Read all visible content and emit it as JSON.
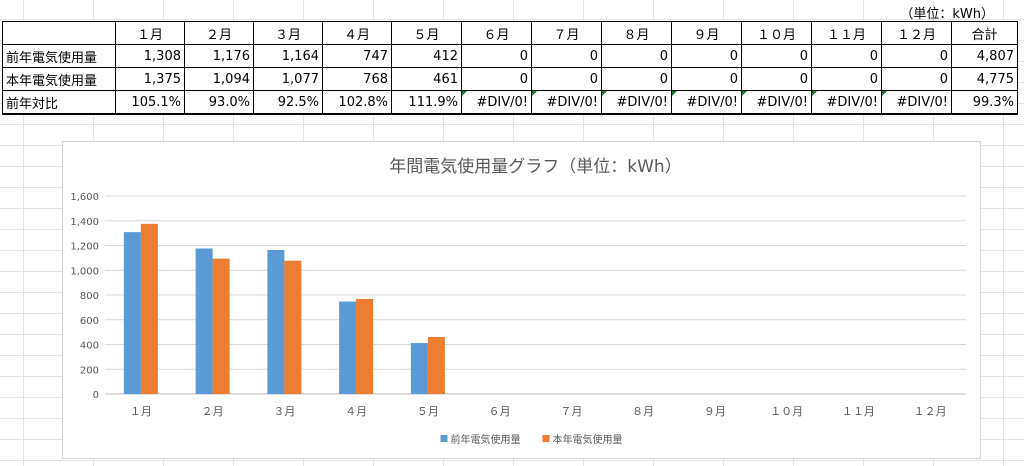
{
  "unit_note": "（単位：kWh）",
  "table": {
    "columns": [
      "１月",
      "２月",
      "３月",
      "４月",
      "５月",
      "６月",
      "７月",
      "８月",
      "９月",
      "１０月",
      "１１月",
      "１２月",
      "合計"
    ],
    "rows": [
      {
        "label": "前年電気使用量",
        "cells": [
          "1,308",
          "1,176",
          "1,164",
          "747",
          "412",
          "0",
          "0",
          "0",
          "0",
          "0",
          "0",
          "0",
          "4,807"
        ]
      },
      {
        "label": "本年電気使用量",
        "cells": [
          "1,375",
          "1,094",
          "1,077",
          "768",
          "461",
          "0",
          "0",
          "0",
          "0",
          "0",
          "0",
          "0",
          "4,775"
        ]
      },
      {
        "label": "前年対比",
        "cells": [
          "105.1%",
          "93.0%",
          "92.5%",
          "102.8%",
          "111.9%",
          "#DIV/0!",
          "#DIV/0!",
          "#DIV/0!",
          "#DIV/0!",
          "#DIV/0!",
          "#DIV/0!",
          "#DIV/0!",
          "99.3%"
        ]
      }
    ]
  },
  "chart_data": {
    "type": "bar",
    "title": "年間電気使用量グラフ（単位：kWh）",
    "categories": [
      "１月",
      "２月",
      "３月",
      "４月",
      "５月",
      "６月",
      "７月",
      "８月",
      "９月",
      "１０月",
      "１１月",
      "１２月"
    ],
    "series": [
      {
        "name": "前年電気使用量",
        "color": "#5b9bd5",
        "values": [
          1308,
          1176,
          1164,
          747,
          412,
          0,
          0,
          0,
          0,
          0,
          0,
          0
        ]
      },
      {
        "name": "本年電気使用量",
        "color": "#ed7d31",
        "values": [
          1375,
          1094,
          1077,
          768,
          461,
          0,
          0,
          0,
          0,
          0,
          0,
          0
        ]
      }
    ],
    "ylim": [
      0,
      1600
    ],
    "yticks": [
      "0",
      "200",
      "400",
      "600",
      "800",
      "1,000",
      "1,200",
      "1,400",
      "1,600"
    ],
    "grid": true,
    "legend": "bottom"
  }
}
